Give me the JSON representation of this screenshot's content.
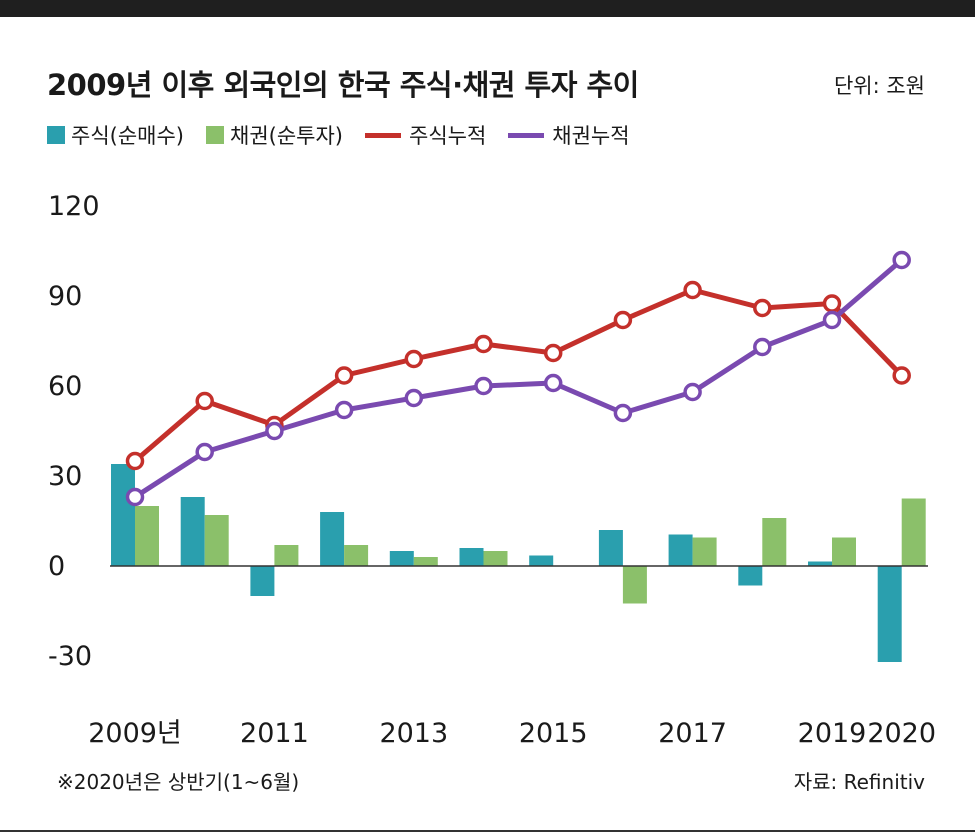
{
  "title": "2009년 이후 외국인의 한국 주식·채권 투자 추이",
  "unit": "단위: 조원",
  "footnote": "※2020년은 상반기(1~6월)",
  "source": "자료: Refinitiv",
  "colors": {
    "stock_bar": "#2a9fae",
    "bond_bar": "#8bc06a",
    "stock_line": "#c4302b",
    "bond_line": "#7a4ab0",
    "top_bar": "#1f1f1f"
  },
  "legend": {
    "stock_bar": "주식(순매수)",
    "bond_bar": "채권(순투자)",
    "stock_line": "주식누적",
    "bond_line": "채권누적"
  },
  "chart_data": {
    "type": "bar+line",
    "categories": [
      "2009",
      "2010",
      "2011",
      "2012",
      "2013",
      "2014",
      "2015",
      "2016",
      "2017",
      "2018",
      "2019",
      "2020"
    ],
    "x_tick_labels": [
      "2009년",
      "",
      "2011",
      "",
      "2013",
      "",
      "2015",
      "",
      "2017",
      "",
      "2019",
      "2020"
    ],
    "y_ticks": [
      "120",
      "90",
      "60",
      "30",
      "0",
      "-30"
    ],
    "ylim": [
      -35,
      125
    ],
    "series": [
      {
        "name": "주식(순매수)",
        "kind": "bar",
        "values": [
          34,
          23,
          -10,
          18,
          5,
          6,
          3.5,
          12,
          10.5,
          -6.5,
          1.5,
          -32
        ]
      },
      {
        "name": "채권(순투자)",
        "kind": "bar",
        "values": [
          20,
          17,
          7,
          7,
          3,
          5,
          0,
          -12.5,
          9.5,
          16,
          9.5,
          22.5
        ]
      },
      {
        "name": "주식누적",
        "kind": "line",
        "values": [
          35,
          55,
          47,
          63.5,
          69,
          74,
          71,
          82,
          92,
          86,
          87.5,
          63.5
        ]
      },
      {
        "name": "채권누적",
        "kind": "line",
        "values": [
          23,
          38,
          45,
          52,
          56,
          60,
          61,
          51,
          58,
          73,
          82,
          102
        ]
      }
    ],
    "grid": false
  }
}
